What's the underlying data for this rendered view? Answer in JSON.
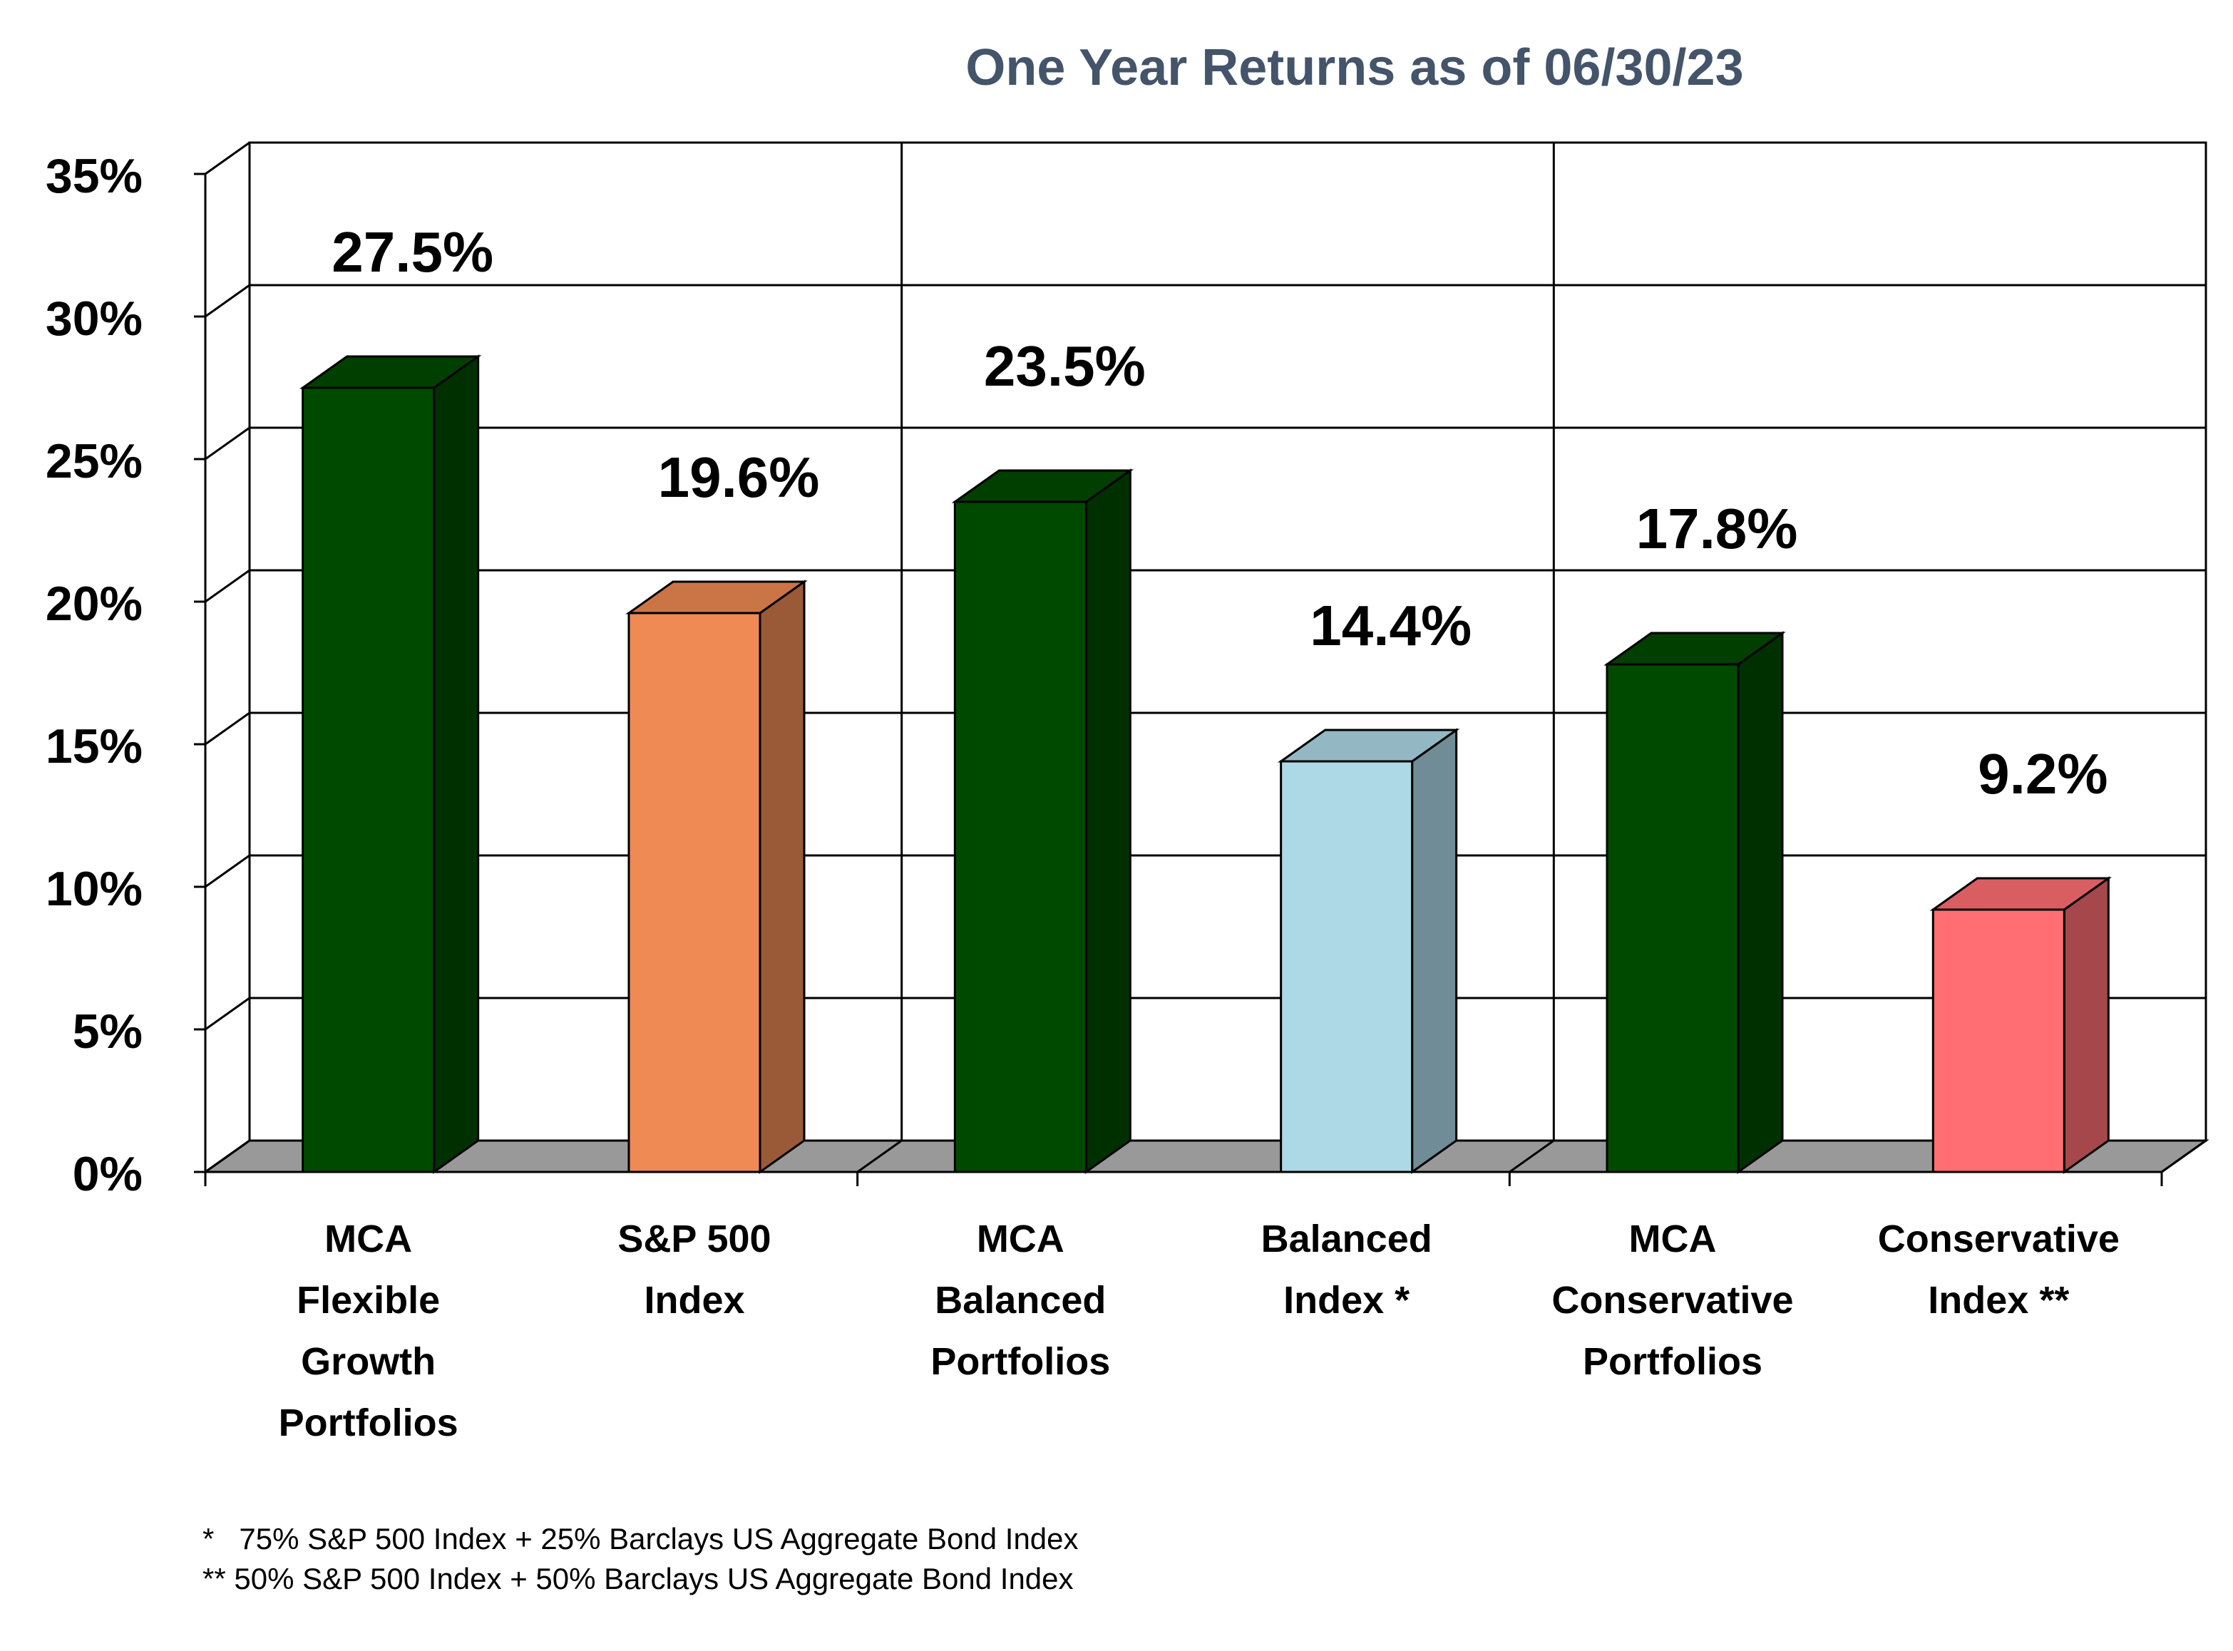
{
  "chart_data": {
    "type": "bar3d",
    "title": "One Year Returns as of 06/30/23",
    "categories": [
      "MCA\nFlexible\nGrowth\nPortfolios",
      "S&P 500\nIndex",
      "MCA\nBalanced\nPortfolios",
      "Balanced\nIndex *",
      "MCA\nConservative\nPortfolios",
      "Conservative\nIndex **"
    ],
    "values": [
      27.5,
      19.6,
      23.5,
      14.4,
      17.8,
      9.2
    ],
    "value_labels": [
      "27.5%",
      "19.6%",
      "23.5%",
      "14.4%",
      "17.8%",
      "9.2%"
    ],
    "colors": [
      "#004a00",
      "#ef8a54",
      "#004a00",
      "#add8e6",
      "#004a00",
      "#ff6e73"
    ],
    "ylim": [
      0,
      35
    ],
    "yticks": [
      {
        "value": 0,
        "label": "0%"
      },
      {
        "value": 5,
        "label": "5%"
      },
      {
        "value": 10,
        "label": "10%"
      },
      {
        "value": 15,
        "label": "15%"
      },
      {
        "value": 20,
        "label": "20%"
      },
      {
        "value": 25,
        "label": "25%"
      },
      {
        "value": 30,
        "label": "30%"
      },
      {
        "value": 35,
        "label": "35%"
      }
    ],
    "grid": true,
    "footnotes": [
      "*   75% S&P 500 Index + 25% Barclays US Aggregate Bond Index",
      "** 50% S&P 500 Index + 50% Barclays US Aggregate Bond Index"
    ]
  }
}
